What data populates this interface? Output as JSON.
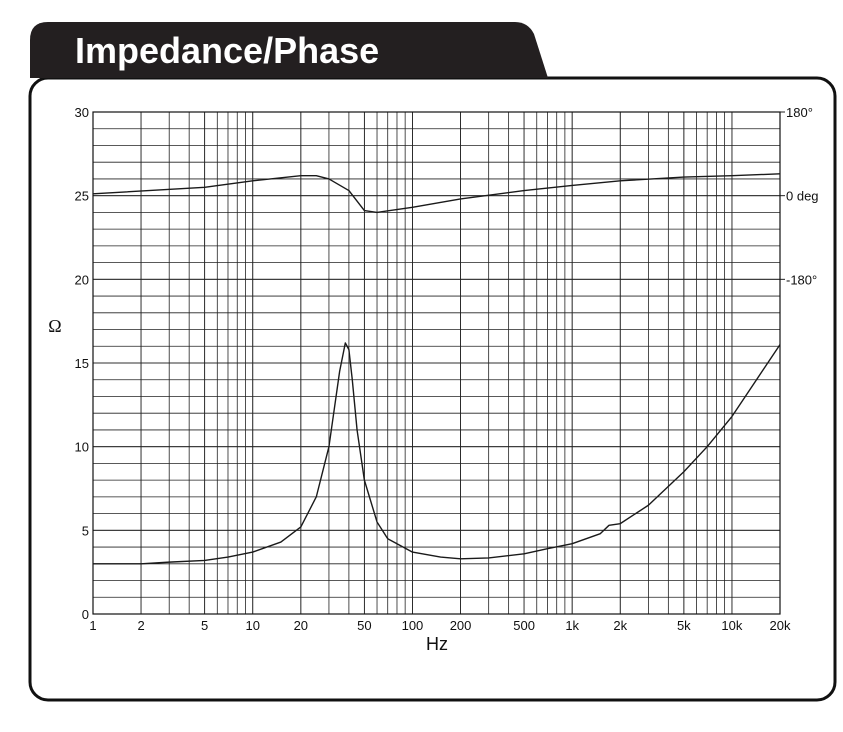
{
  "chart_data": {
    "type": "line",
    "title": "Impedance/Phase",
    "y_label": "Ω",
    "x_label": "Hz",
    "log_x": true,
    "grid": true,
    "minor_grid": true,
    "xlim": [
      1,
      20000
    ],
    "xticks": [
      1,
      2,
      5,
      10,
      20,
      50,
      100,
      200,
      500,
      {
        "value": 1000,
        "label": "1k"
      },
      {
        "value": 2000,
        "label": "2k"
      },
      {
        "value": 5000,
        "label": "5k"
      },
      {
        "value": 10000,
        "label": "10k"
      },
      {
        "value": 20000,
        "label": "20k"
      }
    ],
    "ylim": [
      0,
      30
    ],
    "yticks": [
      0,
      5,
      10,
      15,
      20,
      25,
      30
    ],
    "y2lim": [
      -900,
      180
    ],
    "y2ticks": [
      {
        "value": 180,
        "label": "180°"
      },
      {
        "value": 0,
        "label": "0 deg"
      },
      {
        "value": -180,
        "label": "-180°"
      }
    ],
    "series": [
      {
        "name": "Impedance",
        "color": "#1a1a1a",
        "x": [
          1,
          2,
          3,
          5,
          7,
          10,
          15,
          20,
          25,
          30,
          35,
          38,
          40,
          42,
          45,
          50,
          60,
          70,
          100,
          150,
          200,
          300,
          500,
          700,
          1000,
          1500,
          1700,
          2000,
          3000,
          5000,
          7000,
          10000,
          20000
        ],
        "values": [
          3.0,
          3.0,
          3.1,
          3.2,
          3.4,
          3.7,
          4.3,
          5.2,
          7,
          10,
          14.5,
          16.2,
          15.8,
          14,
          11,
          8,
          5.5,
          4.5,
          3.7,
          3.4,
          3.3,
          3.35,
          3.6,
          3.9,
          4.2,
          4.8,
          5.3,
          5.4,
          6.5,
          8.5,
          10,
          11.8,
          16.1
        ]
      },
      {
        "name": "Phase",
        "color": "#1a1a1a",
        "axis": "y2",
        "x": [
          1,
          5,
          10,
          20,
          25,
          30,
          40,
          50,
          60,
          100,
          200,
          500,
          1000,
          2000,
          5000,
          10000,
          20000
        ],
        "values": [
          4,
          18,
          32,
          43,
          43,
          36,
          11,
          -32,
          -36,
          -25,
          -7,
          11,
          22,
          32,
          40,
          43,
          47
        ]
      }
    ]
  }
}
